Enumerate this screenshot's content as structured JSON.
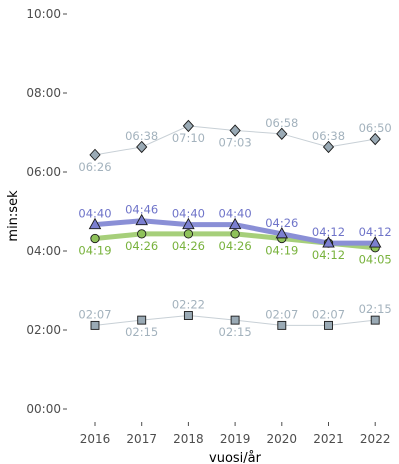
{
  "chart_data": {
    "type": "line",
    "xlabel": "vuosi/år",
    "ylabel": "min:sek",
    "x": [
      2016,
      2017,
      2018,
      2019,
      2020,
      2021,
      2022
    ],
    "y_ticks": [
      "00:00",
      "02:00",
      "04:00",
      "06:00",
      "08:00",
      "10:00"
    ],
    "ylim": [
      0,
      600
    ],
    "grid": false,
    "legend": "none",
    "series": [
      {
        "marker": "diamond",
        "line_color": "#c8d0d6",
        "marker_fill": "#9aaab5",
        "label_color": "#a3b2bd",
        "values": [
          386,
          398,
          430,
          423,
          418,
          398,
          410
        ],
        "labels": [
          "06:26",
          "06:38",
          "07:10",
          "07:03",
          "06:58",
          "06:38",
          "06:50"
        ],
        "label_pos": [
          "below",
          "above",
          "below",
          "below",
          "above",
          "above",
          "above"
        ]
      },
      {
        "marker": "triangle",
        "line_color": "#8a8fd6",
        "marker_fill": "#7b7fd0",
        "label_color": "#6f74c9",
        "values": [
          280,
          286,
          280,
          280,
          266,
          252,
          252
        ],
        "labels": [
          "04:40",
          "04:46",
          "04:40",
          "04:40",
          "04:26",
          "04:12",
          "04:12"
        ],
        "label_pos": [
          "above",
          "above",
          "above",
          "above",
          "above",
          "above",
          "above"
        ]
      },
      {
        "marker": "circle",
        "line_color": "#a6cf7a",
        "marker_fill": "#8fc25a",
        "label_color": "#78b23c",
        "values": [
          259,
          266,
          266,
          266,
          259,
          252,
          245
        ],
        "labels": [
          "04:19",
          "04:26",
          "04:26",
          "04:26",
          "04:19",
          "04:12",
          "04:05"
        ],
        "label_pos": [
          "below",
          "below",
          "below",
          "below",
          "below",
          "below",
          "below"
        ]
      },
      {
        "marker": "square",
        "line_color": "#c8d0d6",
        "marker_fill": "#9aaab5",
        "label_color": "#a3b2bd",
        "values": [
          127,
          135,
          142,
          135,
          127,
          127,
          135
        ],
        "labels": [
          "02:07",
          "02:15",
          "02:22",
          "02:15",
          "02:07",
          "02:07",
          "02:15"
        ],
        "label_pos": [
          "above",
          "below",
          "above",
          "below",
          "above",
          "above",
          "above"
        ]
      }
    ]
  }
}
